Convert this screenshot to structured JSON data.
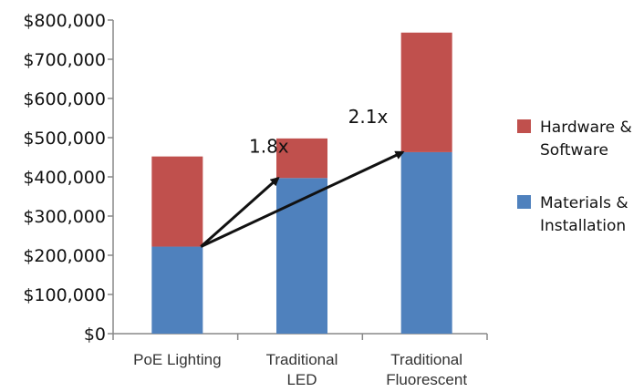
{
  "chart_data": {
    "type": "bar",
    "stacked": true,
    "categories": [
      [
        "PoE Lighting"
      ],
      [
        "Traditional",
        "LED"
      ],
      [
        "Traditional",
        "Fluorescent"
      ]
    ],
    "series": [
      {
        "name": [
          "Materials &",
          "Installation"
        ],
        "color": "#4f81bd",
        "values": [
          222000,
          397000,
          463000
        ]
      },
      {
        "name": [
          "Hardware &",
          "Software"
        ],
        "color": "#c0504d",
        "values": [
          230000,
          101000,
          305000
        ]
      }
    ],
    "ylim": [
      0,
      800000
    ],
    "yticks": [
      0,
      100000,
      200000,
      300000,
      400000,
      500000,
      600000,
      700000,
      800000
    ],
    "ytick_labels": [
      "$0",
      "$100,000",
      "$200,000",
      "$300,000",
      "$400,000",
      "$500,000",
      "$600,000",
      "$700,000",
      "$800,000"
    ],
    "grid": false,
    "legend_position": "right",
    "annotations": [
      {
        "text": "1.8x",
        "from_category": 0,
        "to_category": 1
      },
      {
        "text": "2.1x",
        "from_category": 0,
        "to_category": 2
      }
    ]
  }
}
